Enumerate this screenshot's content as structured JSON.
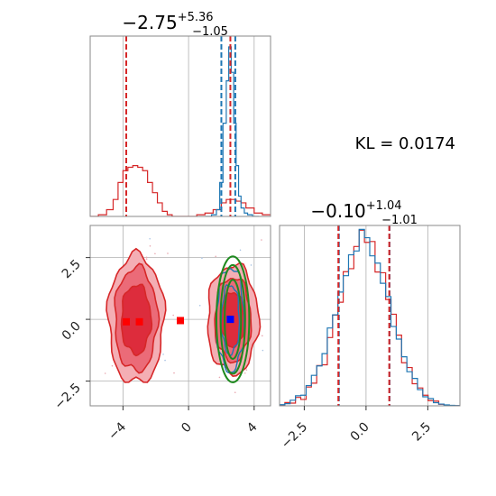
{
  "chart_data": [
    {
      "panel": "marginal-x",
      "type": "step-histogram",
      "title": {
        "main": "−2.75",
        "sup": "+5.36",
        "sub": "−1.05"
      },
      "xlim": [
        -6,
        5
      ],
      "grid": true,
      "series": [
        {
          "color": "#d62728",
          "bins": [
            -6.0,
            -5.5,
            -5.0,
            -4.6,
            -4.3,
            -4.0,
            -3.7,
            -3.4,
            -3.1,
            -2.8,
            -2.5,
            -2.2,
            -1.9,
            -1.6,
            -1.3,
            -1.0,
            -0.5,
            0.0,
            0.5,
            1.0,
            1.5,
            2.0,
            2.3,
            2.6,
            2.9,
            3.2,
            3.5,
            4.0,
            4.5,
            5.0
          ],
          "counts": [
            0.0,
            0.01,
            0.04,
            0.1,
            0.2,
            0.27,
            0.29,
            0.3,
            0.29,
            0.27,
            0.2,
            0.14,
            0.08,
            0.03,
            0.01,
            0.0,
            0.0,
            0.0,
            0.01,
            0.02,
            0.04,
            0.08,
            0.1,
            0.1,
            0.09,
            0.08,
            0.05,
            0.02,
            0.01
          ]
        },
        {
          "color": "#1f77b4",
          "bins": [
            1.0,
            1.4,
            1.7,
            1.9,
            2.1,
            2.3,
            2.45,
            2.6,
            2.75,
            2.9,
            3.05,
            3.2,
            3.4,
            3.6,
            3.9,
            4.3
          ],
          "counts": [
            0.0,
            0.01,
            0.04,
            0.2,
            0.55,
            0.8,
            1.0,
            0.85,
            0.55,
            0.3,
            0.12,
            0.05,
            0.02,
            0.01,
            0.0
          ]
        }
      ],
      "vlines": [
        {
          "x": -3.8,
          "color": "#d62728"
        },
        {
          "x": 2.0,
          "color": "#1f77b4"
        },
        {
          "x": 2.85,
          "color": "#1f77b4"
        },
        {
          "x": 2.55,
          "color": "#d62728"
        }
      ]
    },
    {
      "panel": "joint",
      "type": "contour",
      "xlim": [
        -6,
        5
      ],
      "ylim": [
        -3.5,
        3.8
      ],
      "grid": true,
      "xticks": [
        "−4",
        "0",
        "4"
      ],
      "xtick_values": [
        -4,
        0,
        4
      ],
      "yticks": [
        "2.5",
        "0.0",
        "−2.5"
      ],
      "ytick_values": [
        2.5,
        0.0,
        -2.5
      ],
      "red_blobs": [
        {
          "cx": -3.2,
          "cy": 0.0,
          "levels": [
            [
              1.7,
              2.6
            ],
            [
              1.3,
              2.1
            ],
            [
              0.9,
              1.4
            ]
          ]
        },
        {
          "cx": 2.7,
          "cy": 0.0,
          "levels": [
            [
              1.55,
              2.2
            ],
            [
              1.1,
              1.7
            ],
            [
              0.7,
              1.1
            ]
          ]
        }
      ],
      "green_ellipses": [
        {
          "cx": 2.7,
          "cy": 0.0,
          "rx": 1.0,
          "ry": 2.55
        },
        {
          "cx": 2.7,
          "cy": 0.0,
          "rx": 0.75,
          "ry": 2.2
        },
        {
          "cx": 2.7,
          "cy": 0.0,
          "rx": 0.5,
          "ry": 1.6
        }
      ],
      "markers": [
        {
          "x": -3.8,
          "y": -0.1,
          "color": "#ff0000"
        },
        {
          "x": -3.0,
          "y": -0.1,
          "color": "#ff0000"
        },
        {
          "x": -0.5,
          "y": -0.05,
          "color": "#ff0000"
        },
        {
          "x": 2.55,
          "y": 0.0,
          "color": "#0000ff"
        }
      ]
    },
    {
      "panel": "marginal-y",
      "type": "step-histogram",
      "title": {
        "main": "−0.10",
        "sup": "+1.04",
        "sub": "−1.01"
      },
      "xlim": [
        -3.5,
        3.8
      ],
      "grid": true,
      "xticks": [
        "−2.5",
        "0.0",
        "2.5"
      ],
      "xtick_values": [
        -2.5,
        0.0,
        2.5
      ],
      "series": [
        {
          "color": "#d62728",
          "center": -0.05,
          "sigma": 1.02,
          "peak": 0.88,
          "noise": [
            0.0,
            0.01,
            0.0,
            0.02,
            -0.01,
            0.03,
            0.01,
            0.05,
            -0.02,
            0.04,
            0.06,
            0.02,
            0.08,
            0.0,
            0.05,
            0.1,
            0.03,
            0.07,
            -0.03,
            0.06,
            0.02,
            0.05,
            0.04,
            -0.02,
            0.03,
            0.0,
            0.02,
            0.01,
            0.0,
            0.01,
            0.0,
            0.0,
            0.0,
            0.0
          ]
        },
        {
          "color": "#1f77b4",
          "center": -0.1,
          "sigma": 1.05,
          "peak": 0.86,
          "noise": [
            0.0,
            0.0,
            0.01,
            0.02,
            0.0,
            0.02,
            0.03,
            0.02,
            0.01,
            0.06,
            0.03,
            0.05,
            0.04,
            0.07,
            0.03,
            0.12,
            0.08,
            0.02,
            0.05,
            0.03,
            0.06,
            0.0,
            0.03,
            0.02,
            0.01,
            0.03,
            0.01,
            0.0,
            0.01,
            0.0,
            0.0,
            0.0,
            0.0,
            0.0
          ]
        }
      ],
      "vlines": [
        {
          "x": -1.1,
          "color": "#1f77b4"
        },
        {
          "x": 0.95,
          "color": "#1f77b4"
        },
        {
          "x": -1.12,
          "color": "#d62728"
        },
        {
          "x": 0.94,
          "color": "#d62728"
        }
      ]
    }
  ],
  "annotation": {
    "kl_text": "KL = 0.0174"
  },
  "colors": {
    "red": "#d62728",
    "blue": "#1f77b4",
    "green": "#1f8a1f",
    "grid": "#b0b0b0"
  }
}
